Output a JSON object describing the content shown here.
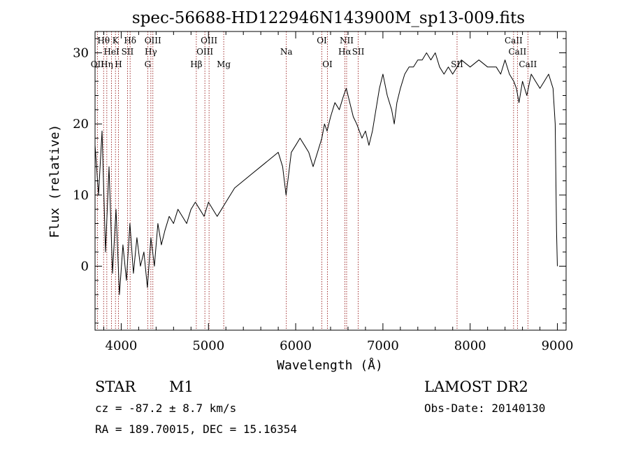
{
  "chart_data": {
    "type": "line",
    "title": "spec-56688-HD122946N143900M_sp13-009.fits",
    "xlabel": "Wavelength (Å)",
    "ylabel": "Flux (relative)",
    "xlim": [
      3700,
      9100
    ],
    "ylim": [
      -9,
      33
    ],
    "xticks": [
      4000,
      5000,
      6000,
      7000,
      8000,
      9000
    ],
    "yticks": [
      0,
      10,
      20,
      30
    ],
    "grid": false,
    "legend": "none",
    "series": [
      {
        "x": [
          3700,
          3740,
          3780,
          3820,
          3860,
          3900,
          3940,
          3980,
          4020,
          4060,
          4100,
          4140,
          4180,
          4220,
          4260,
          4300,
          4340,
          4380,
          4420,
          4460,
          4500,
          4550,
          4600,
          4650,
          4700,
          4750,
          4800,
          4850,
          4900,
          4950,
          5000,
          5050,
          5100,
          5150,
          5200,
          5300,
          5400,
          5500,
          5600,
          5700,
          5800,
          5850,
          5890,
          5920,
          5950,
          6000,
          6050,
          6100,
          6150,
          6200,
          6250,
          6300,
          6330,
          6360,
          6400,
          6450,
          6500,
          6550,
          6580,
          6620,
          6660,
          6700,
          6730,
          6760,
          6800,
          6840,
          6880,
          6920,
          6960,
          7000,
          7050,
          7100,
          7130,
          7160,
          7200,
          7250,
          7300,
          7350,
          7400,
          7450,
          7500,
          7550,
          7600,
          7650,
          7700,
          7750,
          7800,
          7850,
          7900,
          8000,
          8100,
          8200,
          8300,
          8350,
          8400,
          8450,
          8500,
          8530,
          8560,
          8600,
          8650,
          8700,
          8750,
          8800,
          8850,
          8900,
          8950,
          8975,
          8990,
          9000
        ],
        "y": [
          17,
          10,
          19,
          2,
          14,
          -1,
          8,
          -4,
          3,
          -2,
          6,
          -1,
          4,
          0,
          2,
          -3,
          4,
          0,
          6,
          3,
          5,
          7,
          6,
          8,
          7,
          6,
          8,
          9,
          8,
          7,
          9,
          8,
          7,
          8,
          9,
          11,
          12,
          13,
          14,
          15,
          16,
          14,
          10,
          13,
          16,
          17,
          18,
          17,
          16,
          14,
          16,
          18,
          20,
          19,
          21,
          23,
          22,
          24,
          25,
          23,
          21,
          20,
          19,
          18,
          19,
          17,
          19,
          22,
          25,
          27,
          24,
          22,
          20,
          23,
          25,
          27,
          28,
          28,
          29,
          29,
          30,
          29,
          30,
          28,
          27,
          28,
          27,
          28,
          29,
          28,
          29,
          28,
          28,
          27,
          29,
          27,
          26,
          25,
          23,
          26,
          24,
          27,
          26,
          25,
          26,
          27,
          25,
          20,
          5,
          0
        ]
      }
    ],
    "lines": [
      {
        "label": "Hθ",
        "x": 3798,
        "row": 1
      },
      {
        "label": "K",
        "x": 3934,
        "row": 1
      },
      {
        "label": "Hδ",
        "x": 4102,
        "row": 1
      },
      {
        "label": "OIII",
        "x": 4363,
        "row": 1
      },
      {
        "label": "OIII",
        "x": 5007,
        "row": 1
      },
      {
        "label": "OI",
        "x": 6300,
        "row": 1
      },
      {
        "label": "NII",
        "x": 6584,
        "row": 1
      },
      {
        "label": "CaII",
        "x": 8498,
        "row": 1
      },
      {
        "label": "HeI",
        "x": 3889,
        "row": 2
      },
      {
        "label": "SII",
        "x": 4072,
        "row": 2
      },
      {
        "label": "Hγ",
        "x": 4340,
        "row": 2
      },
      {
        "label": "OIII",
        "x": 4959,
        "row": 2
      },
      {
        "label": "Na",
        "x": 5893,
        "row": 2
      },
      {
        "label": "Hα",
        "x": 6563,
        "row": 2
      },
      {
        "label": "SII",
        "x": 6717,
        "row": 2
      },
      {
        "label": "CaII",
        "x": 8542,
        "row": 2
      },
      {
        "label": "OII",
        "x": 3727,
        "row": 3
      },
      {
        "label": "Hη",
        "x": 3835,
        "row": 3
      },
      {
        "label": "H",
        "x": 3968,
        "row": 3
      },
      {
        "label": "G",
        "x": 4304,
        "row": 3
      },
      {
        "label": "Hβ",
        "x": 4861,
        "row": 3
      },
      {
        "label": "Mg",
        "x": 5175,
        "row": 3
      },
      {
        "label": "OI",
        "x": 6364,
        "row": 3
      },
      {
        "label": "SII",
        "x": 7850,
        "row": 3
      },
      {
        "label": "CaII",
        "x": 8662,
        "row": 3
      }
    ]
  },
  "info": {
    "class": "STAR",
    "subclass": "M1",
    "survey": "LAMOST DR2",
    "cz": "cz = -87.2 ± 8.7 km/s",
    "obsdate": "Obs-Date: 20140130",
    "coords": "RA = 189.70015, DEC =  15.16354"
  },
  "colors": {
    "spectrum": "#000000",
    "lines": "#8b0000"
  }
}
